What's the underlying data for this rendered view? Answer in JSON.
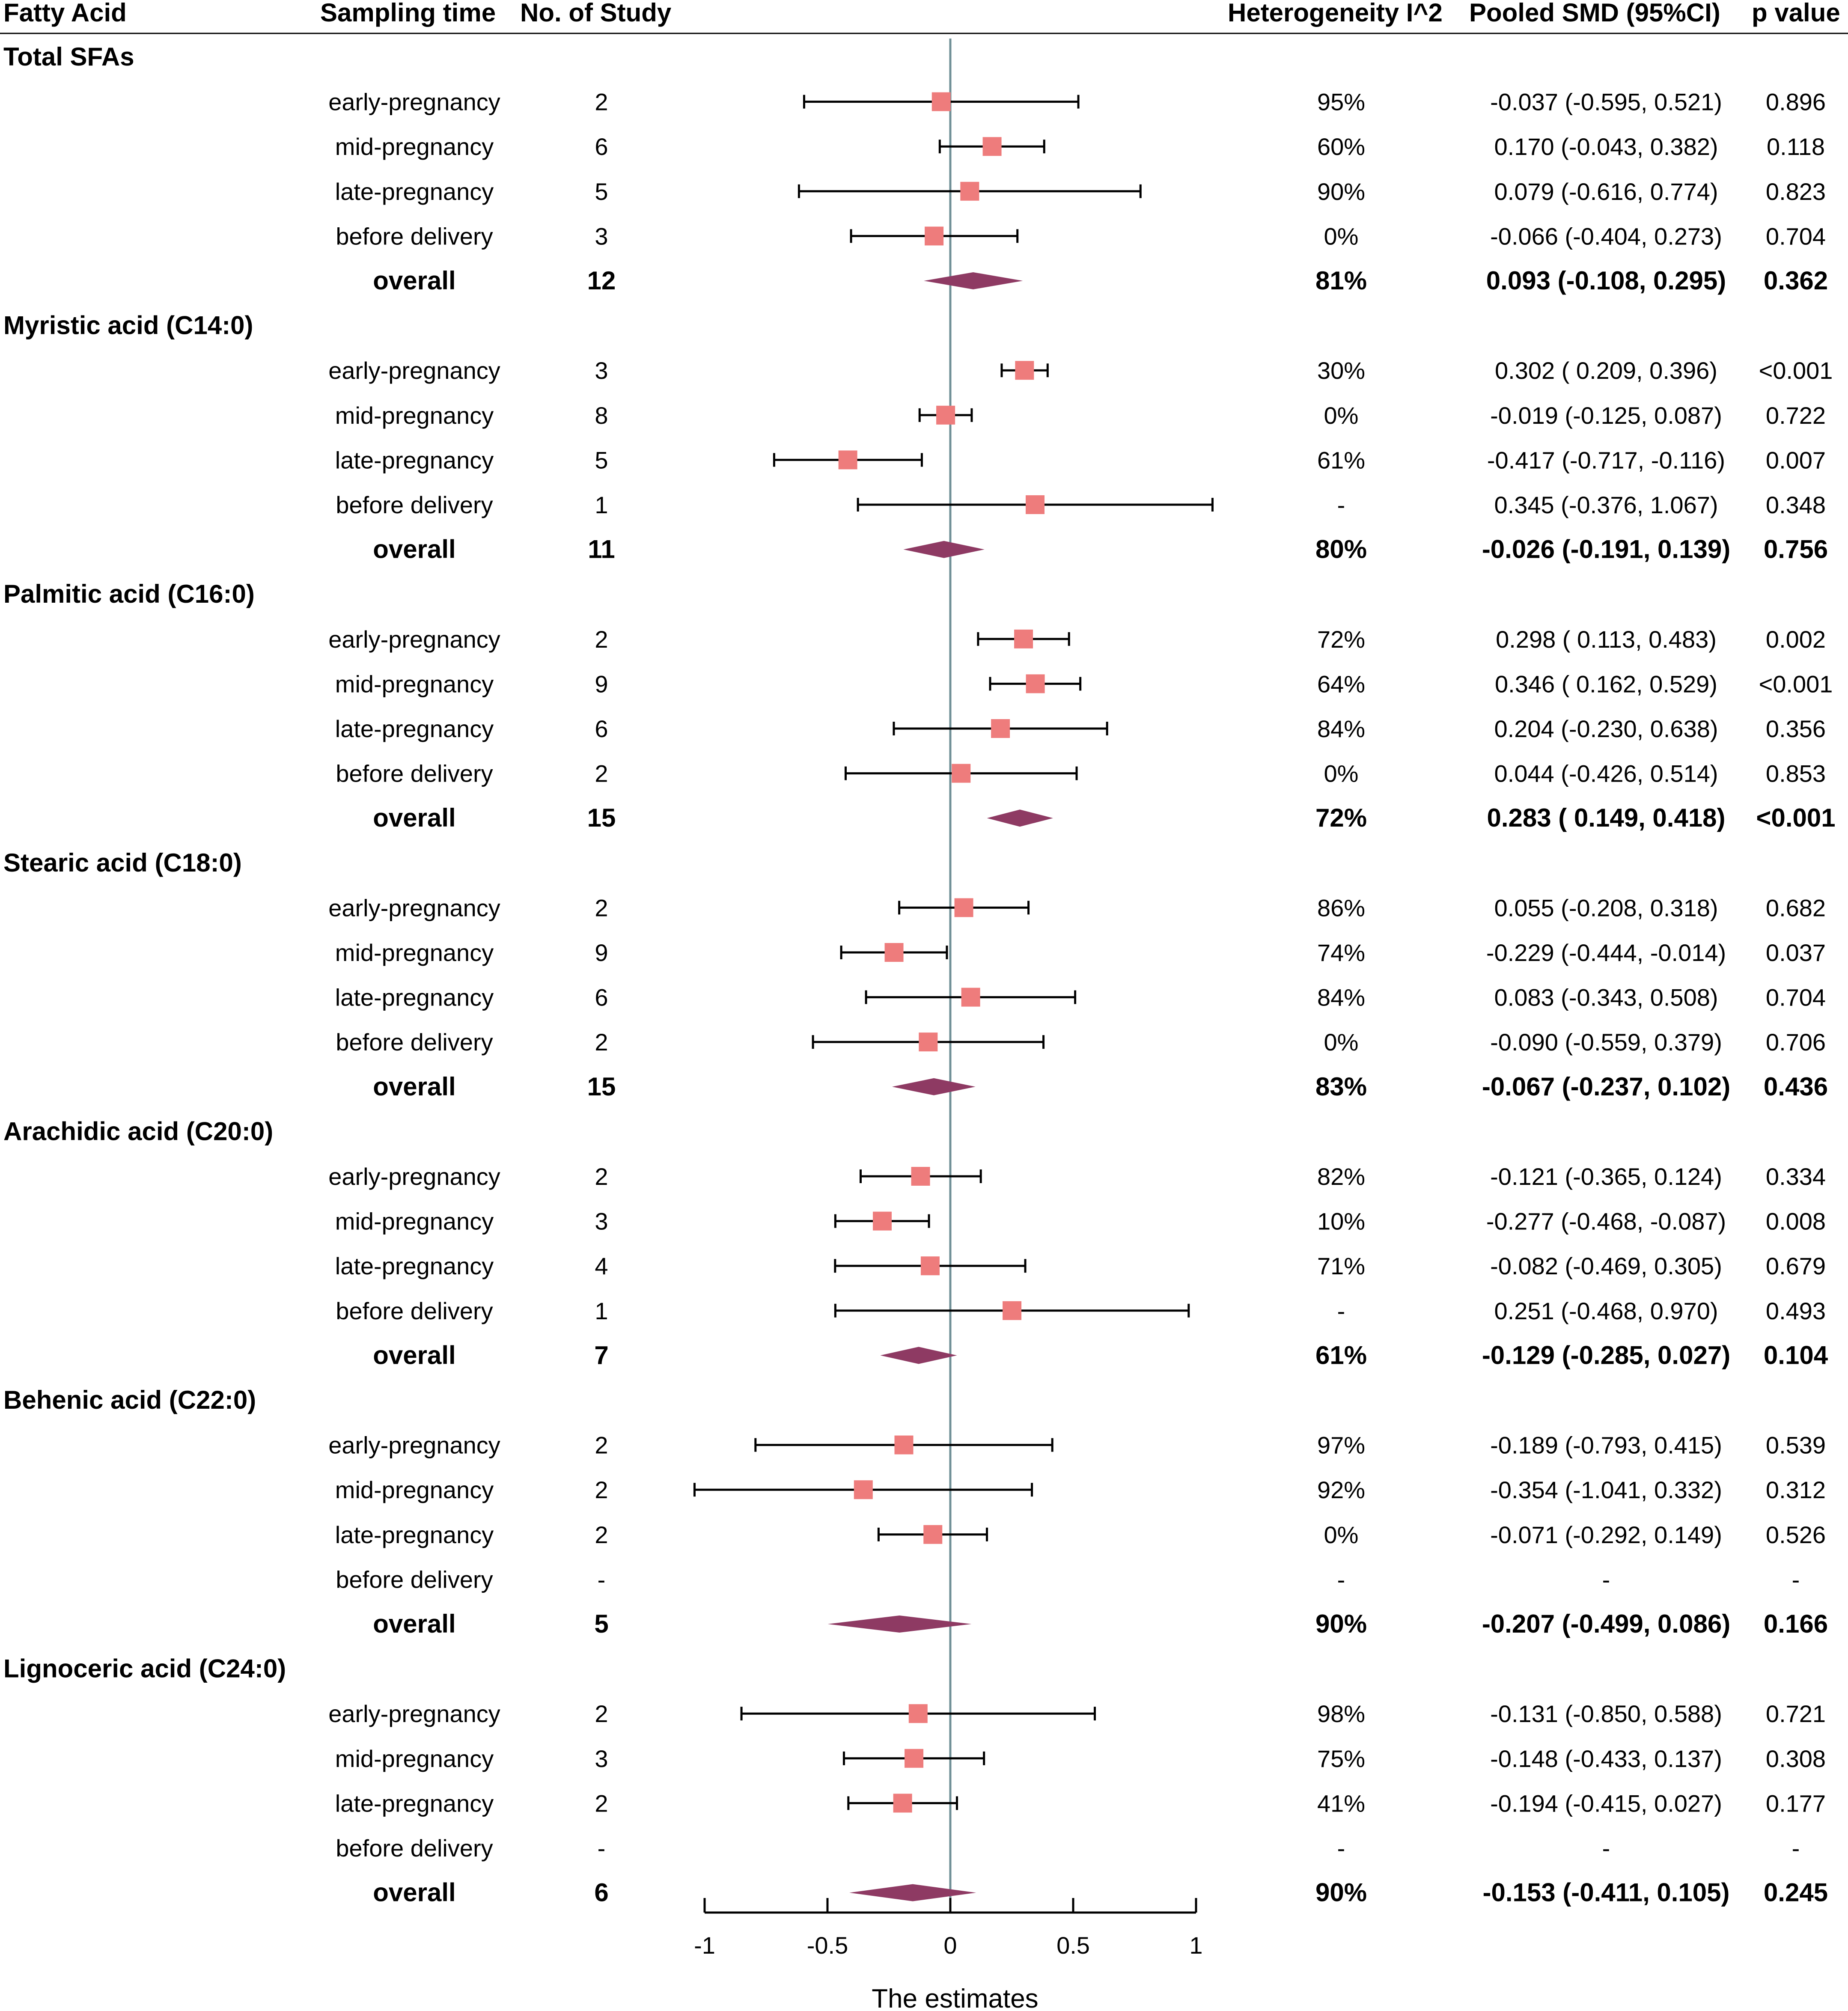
{
  "chart_data": {
    "type": "forest",
    "headers": {
      "fatty_acid": "Fatty Acid",
      "sampling_time": "Sampling time",
      "n_study": "No. of Study",
      "heterogeneity": "Heterogeneity I^2",
      "pooled": "Pooled SMD (95%CI)",
      "p": "p value"
    },
    "xlabel": "The estimates",
    "xlim": [
      -1,
      1
    ],
    "xticks": [
      -1,
      -0.5,
      0,
      0.5,
      1
    ],
    "xtick_labels": [
      "-1",
      "-0.5",
      "0",
      "0.5",
      "1"
    ],
    "reference_line": 0,
    "colors": {
      "marker": "#EE7C7C",
      "diamond": "#8E3A63",
      "refline": "#6F8F96",
      "line": "#000000"
    },
    "groups": [
      {
        "name": "Total SFAs",
        "rows": [
          {
            "time": "early-pregnancy",
            "n": "2",
            "i2": "95%",
            "ci_text": "-0.037 (-0.595, 0.521)",
            "p": "0.896",
            "est": -0.037,
            "lo": -0.595,
            "hi": 0.521
          },
          {
            "time": "mid-pregnancy",
            "n": "6",
            "i2": "60%",
            "ci_text": "0.170 (-0.043, 0.382)",
            "p": "0.118",
            "est": 0.17,
            "lo": -0.043,
            "hi": 0.382
          },
          {
            "time": "late-pregnancy",
            "n": "5",
            "i2": "90%",
            "ci_text": "0.079 (-0.616, 0.774)",
            "p": "0.823",
            "est": 0.079,
            "lo": -0.616,
            "hi": 0.774
          },
          {
            "time": "before delivery",
            "n": "3",
            "i2": "0%",
            "ci_text": "-0.066 (-0.404, 0.273)",
            "p": "0.704",
            "est": -0.066,
            "lo": -0.404,
            "hi": 0.273
          }
        ],
        "overall": {
          "label": "overall",
          "n": "12",
          "i2": "81%",
          "ci_text": "0.093 (-0.108, 0.295)",
          "p": "0.362",
          "est": 0.093,
          "lo": -0.108,
          "hi": 0.295
        }
      },
      {
        "name": "Myristic acid (C14:0)",
        "rows": [
          {
            "time": "early-pregnancy",
            "n": "3",
            "i2": "30%",
            "ci_text": "0.302 ( 0.209, 0.396)",
            "p": "<0.001",
            "est": 0.302,
            "lo": 0.209,
            "hi": 0.396
          },
          {
            "time": "mid-pregnancy",
            "n": "8",
            "i2": "0%",
            "ci_text": "-0.019 (-0.125, 0.087)",
            "p": "0.722",
            "est": -0.019,
            "lo": -0.125,
            "hi": 0.087
          },
          {
            "time": "late-pregnancy",
            "n": "5",
            "i2": "61%",
            "ci_text": "-0.417 (-0.717, -0.116)",
            "p": "0.007",
            "est": -0.417,
            "lo": -0.717,
            "hi": -0.116
          },
          {
            "time": "before delivery",
            "n": "1",
            "i2": "-",
            "ci_text": "0.345 (-0.376, 1.067)",
            "p": "0.348",
            "est": 0.345,
            "lo": -0.376,
            "hi": 1.067
          }
        ],
        "overall": {
          "label": "overall",
          "n": "11",
          "i2": "80%",
          "ci_text": "-0.026 (-0.191, 0.139)",
          "p": "0.756",
          "est": -0.026,
          "lo": -0.191,
          "hi": 0.139
        }
      },
      {
        "name": "Palmitic acid (C16:0)",
        "rows": [
          {
            "time": "early-pregnancy",
            "n": "2",
            "i2": "72%",
            "ci_text": "0.298 ( 0.113, 0.483)",
            "p": "0.002",
            "est": 0.298,
            "lo": 0.113,
            "hi": 0.483
          },
          {
            "time": "mid-pregnancy",
            "n": "9",
            "i2": "64%",
            "ci_text": "0.346 ( 0.162, 0.529)",
            "p": "<0.001",
            "est": 0.346,
            "lo": 0.162,
            "hi": 0.529
          },
          {
            "time": "late-pregnancy",
            "n": "6",
            "i2": "84%",
            "ci_text": "0.204 (-0.230, 0.638)",
            "p": "0.356",
            "est": 0.204,
            "lo": -0.23,
            "hi": 0.638
          },
          {
            "time": "before delivery",
            "n": "2",
            "i2": "0%",
            "ci_text": "0.044 (-0.426, 0.514)",
            "p": "0.853",
            "est": 0.044,
            "lo": -0.426,
            "hi": 0.514
          }
        ],
        "overall": {
          "label": "overall",
          "n": "15",
          "i2": "72%",
          "ci_text": "0.283 ( 0.149, 0.418)",
          "p": "<0.001",
          "est": 0.283,
          "lo": 0.149,
          "hi": 0.418
        }
      },
      {
        "name": "Stearic acid (C18:0)",
        "rows": [
          {
            "time": "early-pregnancy",
            "n": "2",
            "i2": "86%",
            "ci_text": "0.055 (-0.208, 0.318)",
            "p": "0.682",
            "est": 0.055,
            "lo": -0.208,
            "hi": 0.318
          },
          {
            "time": "mid-pregnancy",
            "n": "9",
            "i2": "74%",
            "ci_text": "-0.229 (-0.444, -0.014)",
            "p": "0.037",
            "est": -0.229,
            "lo": -0.444,
            "hi": -0.014
          },
          {
            "time": "late-pregnancy",
            "n": "6",
            "i2": "84%",
            "ci_text": "0.083 (-0.343, 0.508)",
            "p": "0.704",
            "est": 0.083,
            "lo": -0.343,
            "hi": 0.508
          },
          {
            "time": "before delivery",
            "n": "2",
            "i2": "0%",
            "ci_text": "-0.090 (-0.559, 0.379)",
            "p": "0.706",
            "est": -0.09,
            "lo": -0.559,
            "hi": 0.379
          }
        ],
        "overall": {
          "label": "overall",
          "n": "15",
          "i2": "83%",
          "ci_text": "-0.067 (-0.237, 0.102)",
          "p": "0.436",
          "est": -0.067,
          "lo": -0.237,
          "hi": 0.102
        }
      },
      {
        "name": "Arachidic acid (C20:0)",
        "rows": [
          {
            "time": "early-pregnancy",
            "n": "2",
            "i2": "82%",
            "ci_text": "-0.121 (-0.365, 0.124)",
            "p": "0.334",
            "est": -0.121,
            "lo": -0.365,
            "hi": 0.124
          },
          {
            "time": "mid-pregnancy",
            "n": "3",
            "i2": "10%",
            "ci_text": "-0.277 (-0.468, -0.087)",
            "p": "0.008",
            "est": -0.277,
            "lo": -0.468,
            "hi": -0.087
          },
          {
            "time": "late-pregnancy",
            "n": "4",
            "i2": "71%",
            "ci_text": "-0.082 (-0.469, 0.305)",
            "p": "0.679",
            "est": -0.082,
            "lo": -0.469,
            "hi": 0.305
          },
          {
            "time": "before delivery",
            "n": "1",
            "i2": "-",
            "ci_text": "0.251 (-0.468, 0.970)",
            "p": "0.493",
            "est": 0.251,
            "lo": -0.468,
            "hi": 0.97
          }
        ],
        "overall": {
          "label": "overall",
          "n": "7",
          "i2": "61%",
          "ci_text": "-0.129 (-0.285, 0.027)",
          "p": "0.104",
          "est": -0.129,
          "lo": -0.285,
          "hi": 0.027
        }
      },
      {
        "name": "Behenic acid (C22:0)",
        "rows": [
          {
            "time": "early-pregnancy",
            "n": "2",
            "i2": "97%",
            "ci_text": "-0.189 (-0.793, 0.415)",
            "p": "0.539",
            "est": -0.189,
            "lo": -0.793,
            "hi": 0.415
          },
          {
            "time": "mid-pregnancy",
            "n": "2",
            "i2": "92%",
            "ci_text": "-0.354 (-1.041, 0.332)",
            "p": "0.312",
            "est": -0.354,
            "lo": -1.041,
            "hi": 0.332
          },
          {
            "time": "late-pregnancy",
            "n": "2",
            "i2": "0%",
            "ci_text": "-0.071 (-0.292, 0.149)",
            "p": "0.526",
            "est": -0.071,
            "lo": -0.292,
            "hi": 0.149
          },
          {
            "time": "before delivery",
            "n": "-",
            "i2": "-",
            "ci_text": "-",
            "p": "-",
            "est": null,
            "lo": null,
            "hi": null
          }
        ],
        "overall": {
          "label": "overall",
          "n": "5",
          "i2": "90%",
          "ci_text": "-0.207 (-0.499, 0.086)",
          "p": "0.166",
          "est": -0.207,
          "lo": -0.499,
          "hi": 0.086
        }
      },
      {
        "name": "Lignoceric acid (C24:0)",
        "rows": [
          {
            "time": "early-pregnancy",
            "n": "2",
            "i2": "98%",
            "ci_text": "-0.131 (-0.850, 0.588)",
            "p": "0.721",
            "est": -0.131,
            "lo": -0.85,
            "hi": 0.588
          },
          {
            "time": "mid-pregnancy",
            "n": "3",
            "i2": "75%",
            "ci_text": "-0.148 (-0.433, 0.137)",
            "p": "0.308",
            "est": -0.148,
            "lo": -0.433,
            "hi": 0.137
          },
          {
            "time": "late-pregnancy",
            "n": "2",
            "i2": "41%",
            "ci_text": "-0.194 (-0.415, 0.027)",
            "p": "0.177",
            "est": -0.194,
            "lo": -0.415,
            "hi": 0.027
          },
          {
            "time": "before delivery",
            "n": "-",
            "i2": "-",
            "ci_text": "-",
            "p": "-",
            "est": null,
            "lo": null,
            "hi": null
          }
        ],
        "overall": {
          "label": "overall",
          "n": "6",
          "i2": "90%",
          "ci_text": "-0.153 (-0.411, 0.105)",
          "p": "0.245",
          "est": -0.153,
          "lo": -0.411,
          "hi": 0.105
        }
      }
    ]
  }
}
